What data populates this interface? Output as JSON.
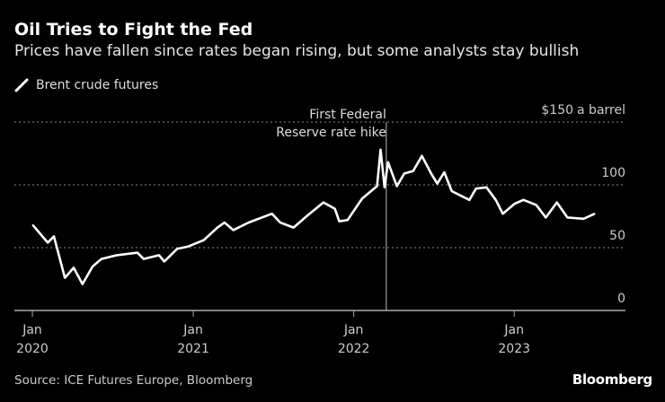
{
  "colors": {
    "background": "#000000",
    "line": "#ffffff",
    "grid": "#8a8a8a",
    "text": "#cccccc"
  },
  "header": {
    "title": "Oil Tries to Fight the Fed",
    "subtitle": "Prices have fallen since rates began rising, but some analysts stay bullish"
  },
  "legend": {
    "icon": "line-swatch-icon",
    "label": "Brent crude futures"
  },
  "footer": {
    "source": "Source: ICE Futures Europe, Bloomberg",
    "logo": "Bloomberg"
  },
  "chart_data": {
    "type": "line",
    "title": "Oil Tries to Fight the Fed",
    "subtitle": "Prices have fallen since rates began rising, but some analysts stay bullish",
    "ylabel": "$150 a barrel",
    "ylim": [
      0,
      150
    ],
    "yticks": [
      0,
      50,
      100,
      150
    ],
    "ytick_labels": [
      "0",
      "50",
      "100",
      "$150"
    ],
    "y_unit_label": "a barrel",
    "xlim": [
      "2020-01-01",
      "2023-07-31"
    ],
    "xticks": [
      {
        "date": "2020-01-01",
        "month": "Jan",
        "year": "2020"
      },
      {
        "date": "2021-01-01",
        "month": "Jan",
        "year": "2021"
      },
      {
        "date": "2022-01-01",
        "month": "Jan",
        "year": "2022"
      },
      {
        "date": "2023-01-01",
        "month": "Jan",
        "year": "2023"
      }
    ],
    "grid": true,
    "legend_position": "top-left",
    "annotation": {
      "date": "2022-03-16",
      "line1": "First Federal",
      "line2": "Reserve rate hike"
    },
    "series": [
      {
        "name": "Brent crude futures",
        "points": [
          [
            "2020-01-02",
            68
          ],
          [
            "2020-02-05",
            54
          ],
          [
            "2020-02-19",
            59
          ],
          [
            "2020-03-15",
            26
          ],
          [
            "2020-04-04",
            34
          ],
          [
            "2020-04-24",
            21
          ],
          [
            "2020-05-17",
            35
          ],
          [
            "2020-06-06",
            41
          ],
          [
            "2020-07-11",
            44
          ],
          [
            "2020-08-27",
            46
          ],
          [
            "2020-09-10",
            41
          ],
          [
            "2020-10-15",
            44
          ],
          [
            "2020-10-27",
            39
          ],
          [
            "2020-11-25",
            49
          ],
          [
            "2020-12-21",
            51
          ],
          [
            "2021-01-25",
            56
          ],
          [
            "2021-02-25",
            66
          ],
          [
            "2021-03-13",
            70
          ],
          [
            "2021-04-02",
            64
          ],
          [
            "2021-05-07",
            70
          ],
          [
            "2021-06-29",
            77
          ],
          [
            "2021-07-18",
            70
          ],
          [
            "2021-08-17",
            66
          ],
          [
            "2021-09-19",
            76
          ],
          [
            "2021-10-24",
            86
          ],
          [
            "2021-11-19",
            81
          ],
          [
            "2021-11-29",
            71
          ],
          [
            "2021-12-18",
            72
          ],
          [
            "2022-01-20",
            89
          ],
          [
            "2022-02-23",
            99
          ],
          [
            "2022-03-03",
            128
          ],
          [
            "2022-03-12",
            98
          ],
          [
            "2022-03-20",
            118
          ],
          [
            "2022-04-09",
            99
          ],
          [
            "2022-04-26",
            109
          ],
          [
            "2022-05-16",
            111
          ],
          [
            "2022-06-05",
            123
          ],
          [
            "2022-06-26",
            109
          ],
          [
            "2022-07-10",
            101
          ],
          [
            "2022-07-26",
            110
          ],
          [
            "2022-08-12",
            95
          ],
          [
            "2022-09-21",
            88
          ],
          [
            "2022-10-06",
            97
          ],
          [
            "2022-10-30",
            98
          ],
          [
            "2022-11-20",
            88
          ],
          [
            "2022-12-06",
            77
          ],
          [
            "2023-01-02",
            85
          ],
          [
            "2023-01-22",
            88
          ],
          [
            "2023-02-20",
            84
          ],
          [
            "2023-03-14",
            74
          ],
          [
            "2023-04-08",
            86
          ],
          [
            "2023-05-02",
            74
          ],
          [
            "2023-06-08",
            73
          ],
          [
            "2023-07-03",
            77
          ]
        ]
      }
    ]
  }
}
